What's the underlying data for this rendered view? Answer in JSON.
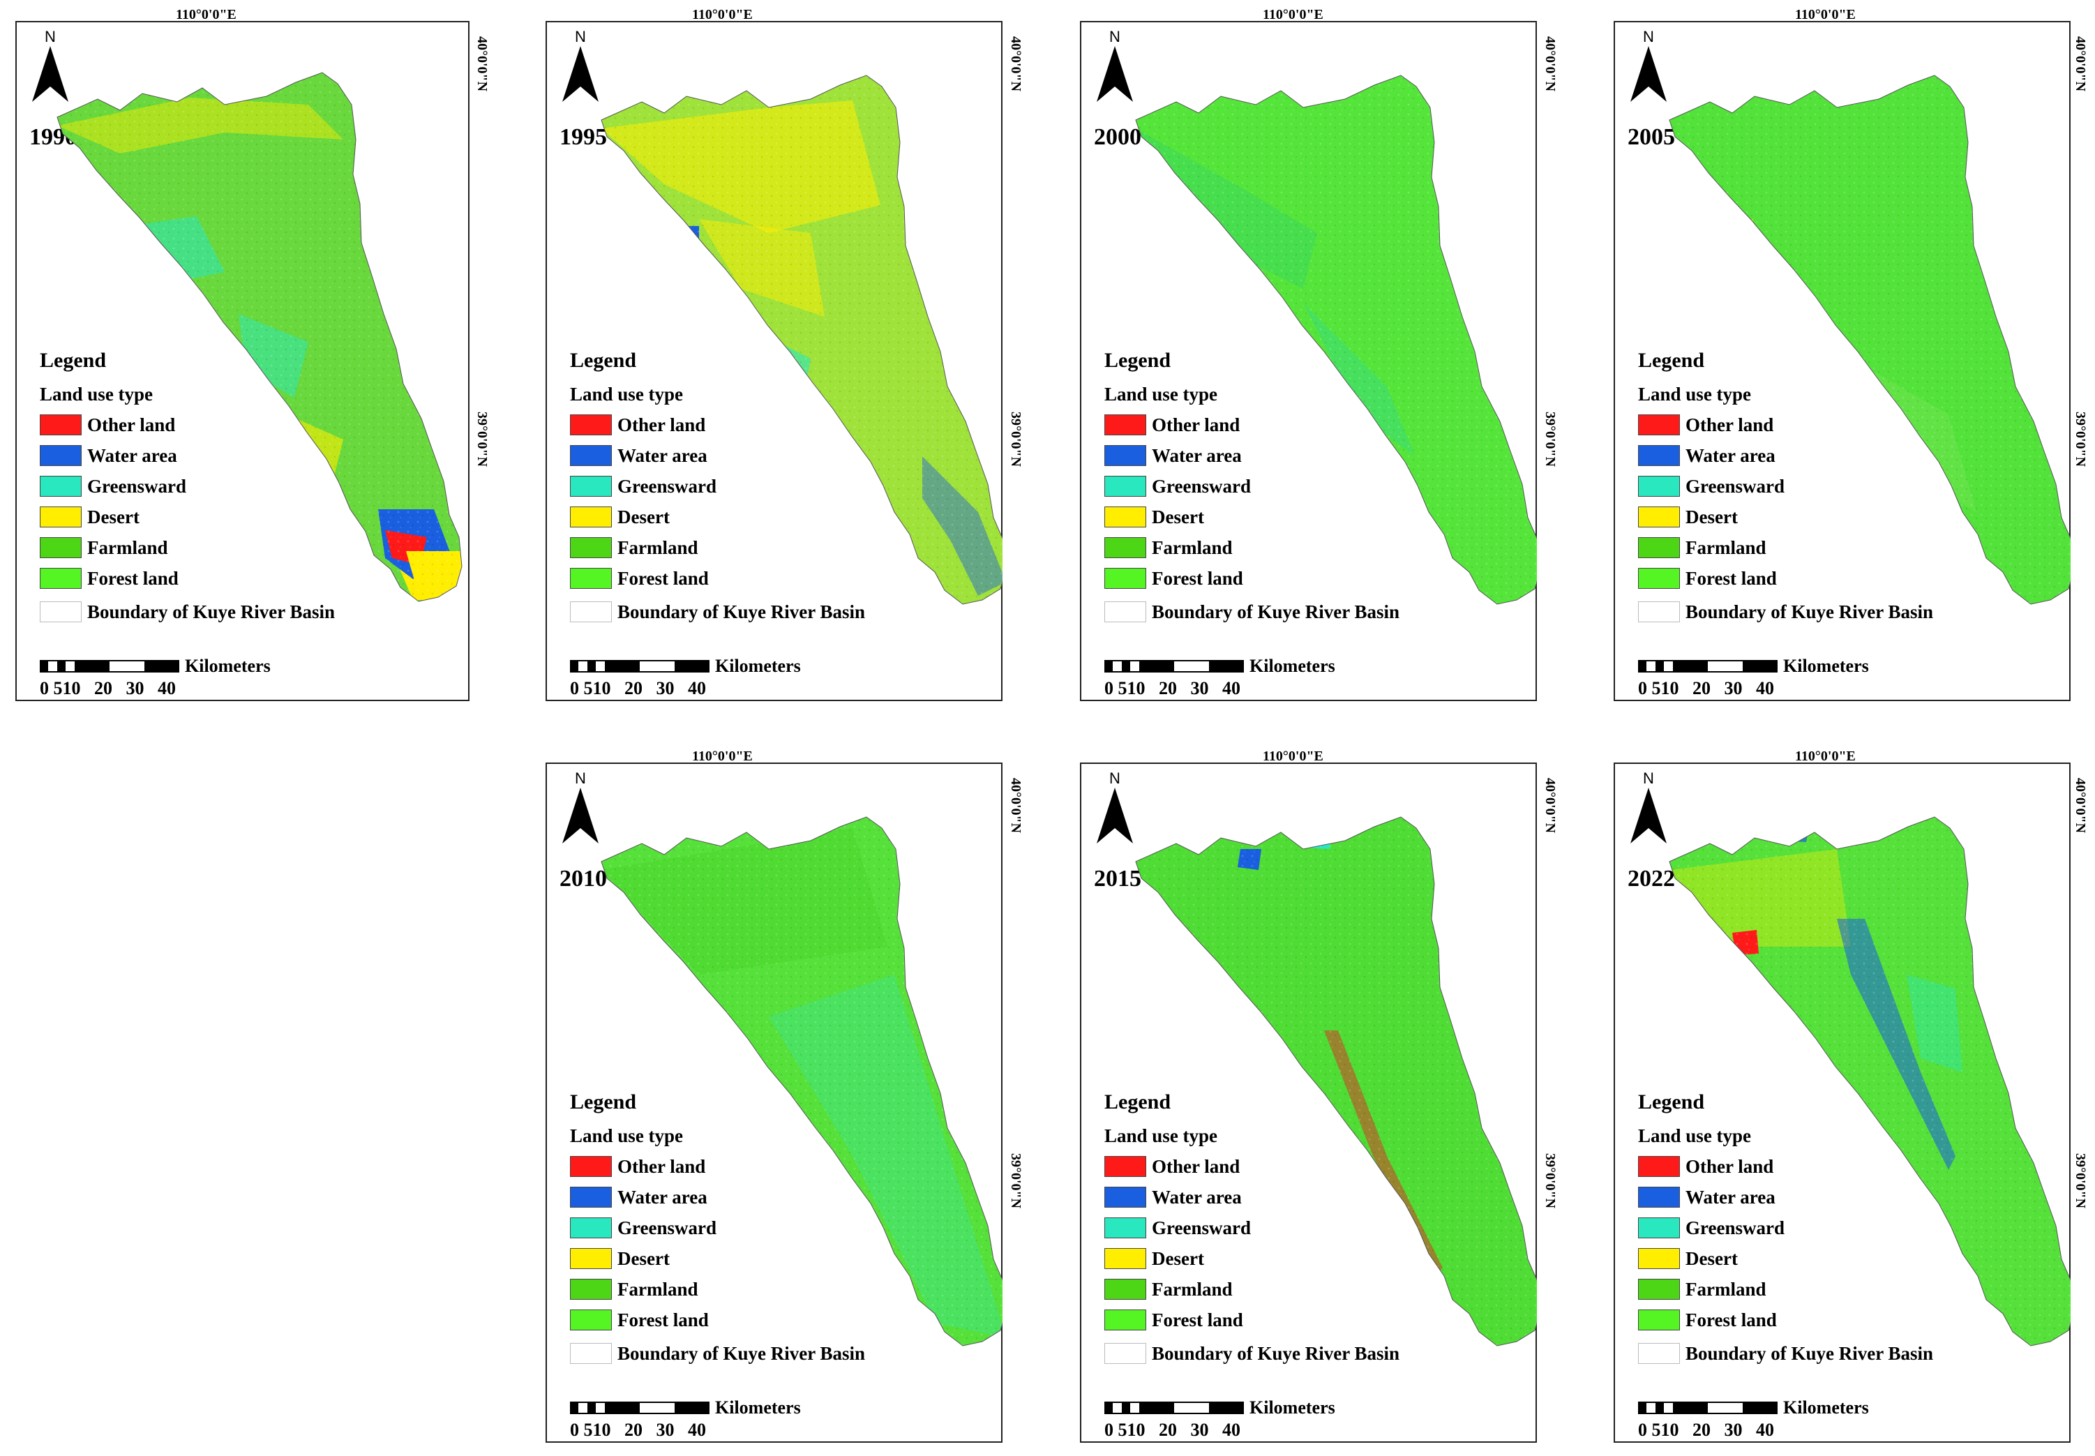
{
  "figure": {
    "lon_label": "110°0'0\"E",
    "lat_top_label": "40°0'0\"N",
    "lat_mid_label": "39°0'0\"N",
    "north_label": "N",
    "legend": {
      "title": "Legend",
      "subtitle": "Land use type",
      "items": [
        {
          "label": "Other land",
          "color": "#ff1a1a"
        },
        {
          "label": "Water area",
          "color": "#1a5fe0"
        },
        {
          "label": "Greensward",
          "color": "#29e8c0"
        },
        {
          "label": "Desert",
          "color": "#ffee00"
        },
        {
          "label": "Farmland",
          "color": "#4dd616"
        },
        {
          "label": "Forest land",
          "color": "#55f524"
        }
      ],
      "boundary_label": "Boundary of Kuye River Basin"
    },
    "scale": {
      "unit": "Kilometers",
      "ticks": [
        "0",
        "5",
        "10",
        "20",
        "30",
        "40"
      ]
    },
    "panels": [
      {
        "year": "1990",
        "base": "#68d83c",
        "patches": [
          "#ffee00",
          "#29e8c0",
          "#1a5fe0",
          "#ff1a1a"
        ]
      },
      {
        "year": "1995",
        "base": "#9fe23a",
        "patches": [
          "#ffee00",
          "#ffee00",
          "#1a5fe0",
          "#29e8c0"
        ]
      },
      {
        "year": "2000",
        "base": "#55e53a",
        "patches": [
          "#3ed85a",
          "#2bd6a0",
          "#4ade48",
          "#1a5fe0"
        ]
      },
      {
        "year": "2005",
        "base": "#52e23a",
        "patches": [
          "#ffee00",
          "#29e8c0",
          "#6ae44a",
          "#1a5fe0"
        ]
      },
      {
        "year": "2010",
        "base": "#56e03a",
        "patches": [
          "#48d84a",
          "#45e37a",
          "#29e8c0",
          "#4ad62a"
        ]
      },
      {
        "year": "2015",
        "base": "#4fdc34",
        "patches": [
          "#1a5fe0",
          "#c84a2a",
          "#29e8c0",
          "#46d82c"
        ]
      },
      {
        "year": "2022",
        "base": "#55e03a",
        "patches": [
          "#ff1a1a",
          "#1a5fe0",
          "#ffee00",
          "#29e8c0"
        ]
      }
    ]
  }
}
